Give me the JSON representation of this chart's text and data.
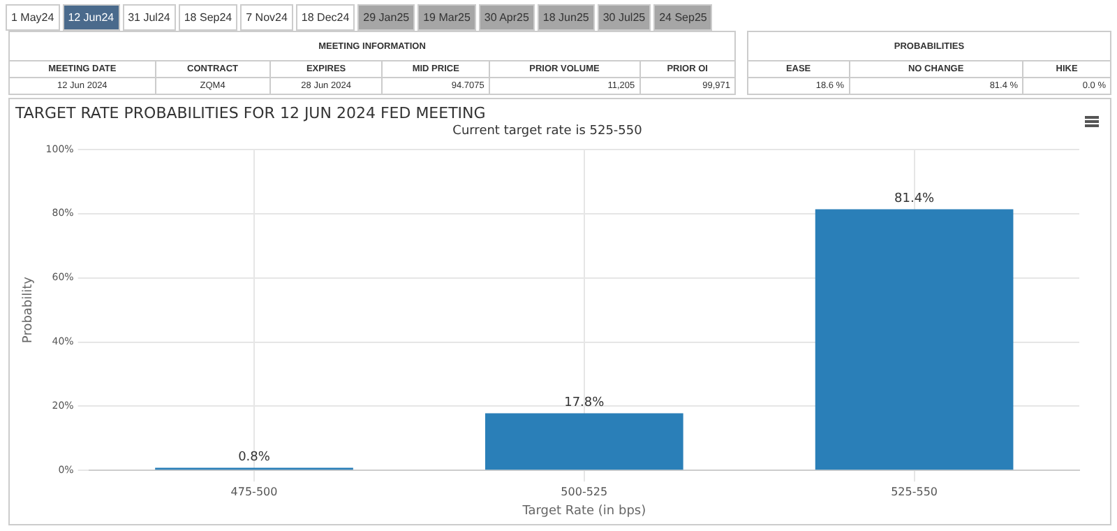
{
  "chart_data": [
    {
      "type": "other",
      "categories": [
        "1 May24",
        "12 Jun24",
        "31 Jul24",
        "18 Sep24",
        "7 Nov24",
        "18 Dec24",
        "29 Jan25",
        "19 Mar25",
        "30 Apr25",
        "18 Jun25",
        "30 Jul25",
        "24 Sep25"
      ],
      "colors": [
        "#ffffff",
        "#4a6a8c",
        "#ffffff",
        "#ffffff",
        "#ffffff",
        "#ffffff",
        "#a6a6a6",
        "#a6a6a6",
        "#a6a6a6",
        "#a6a6a6",
        "#a6a6a6",
        "#a6a6a6"
      ]
    },
    {
      "type": "other",
      "title": "MEETING INFORMATION",
      "categories": [
        "MEETING DATE",
        "CONTRACT",
        "EXPIRES",
        "MID PRICE",
        "PRIOR VOLUME",
        "PRIOR OI"
      ],
      "annotations": [
        "12 Jun 2024",
        "ZQM4",
        "28 Jun 2024",
        "94.7075",
        "11,205",
        "99,971"
      ]
    },
    {
      "type": "other",
      "title": "PROBABILITIES",
      "categories": [
        "EASE",
        "NO CHANGE",
        "HIKE"
      ],
      "annotations": [
        "18.6 %",
        "81.4 %",
        "0.0 %"
      ]
    },
    {
      "type": "bar",
      "title": "TARGET RATE PROBABILITIES FOR 12 JUN 2024 FED MEETING",
      "subtitle": "Current target rate is 525-550",
      "xlabel": "Target Rate (in bps)",
      "ylabel": "Probability",
      "categories": [
        "475-500",
        "500-525",
        "525-550"
      ],
      "values": [
        0.8,
        17.8,
        81.4
      ],
      "color": "#2a7fb8",
      "value_labels": [
        "0.8%",
        "17.8%",
        "81.4%"
      ],
      "ylim": [
        0,
        100
      ],
      "yticks": [
        {
          "value": 0,
          "label": "0%"
        },
        {
          "value": 20,
          "label": "20%"
        },
        {
          "value": 40,
          "label": "40%"
        },
        {
          "value": 60,
          "label": "60%"
        },
        {
          "value": 80,
          "label": "80%"
        },
        {
          "value": 100,
          "label": "100%"
        }
      ],
      "grid": true,
      "legend": false
    }
  ]
}
